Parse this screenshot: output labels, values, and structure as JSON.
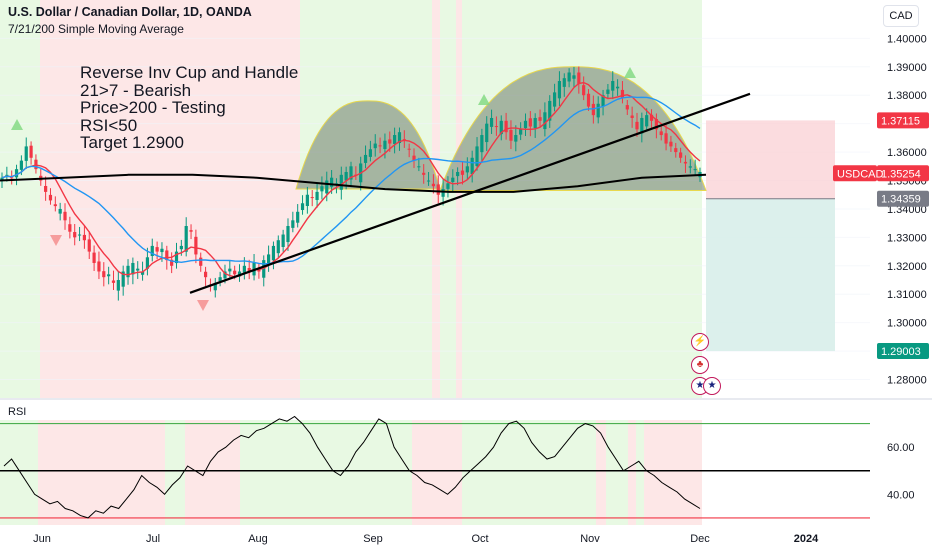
{
  "header": {
    "title": "U.S. Dollar / Canadian Dollar, 1D, OANDA",
    "indicator": "7/21/200 Simple Moving Average",
    "currency_button": "CAD"
  },
  "note_lines": [
    "Reverse Inv Cup and Handle",
    "21>7 - Bearish",
    "Price>200 - Testing",
    "RSI<50",
    "Target 1.2900"
  ],
  "rsi_label": "RSI",
  "price_labels": {
    "stop": "1.37115",
    "symbol": "USDCAD",
    "last": "1.35254",
    "entry": "1.34359",
    "target": "1.29003"
  },
  "colors": {
    "up": "#089981",
    "down": "#f23645",
    "sma7": "#f23645",
    "sma21": "#2196f3",
    "sma200": "#000000",
    "bull_zone": "#e8f9e3",
    "bear_zone": "#fde7e7",
    "stop_zone": "#f9d0d4",
    "target_zone": "#d6ede9"
  },
  "icons": [
    "lightning-icon",
    "canada-flag-icon",
    "us-flag-icon"
  ],
  "chart_data": {
    "type": "candlestick",
    "x_tick_labels": [
      "Jun",
      "Jul",
      "Aug",
      "Sep",
      "Oct",
      "Nov",
      "Dec",
      "2024"
    ],
    "y_ticks": [
      "1.40000",
      "1.39000",
      "1.38000",
      "1.37000",
      "1.36000",
      "1.35000",
      "1.34000",
      "1.33000",
      "1.32000",
      "1.31000",
      "1.30000",
      "1.29000",
      "1.28000"
    ],
    "ylim": [
      1.2735,
      1.4135
    ],
    "series_close_approx": [
      1.351,
      1.352,
      1.351,
      1.354,
      1.357,
      1.362,
      1.358,
      1.354,
      1.35,
      1.346,
      1.343,
      1.341,
      1.34,
      1.336,
      1.332,
      1.33,
      1.331,
      1.329,
      1.325,
      1.321,
      1.318,
      1.316,
      1.317,
      1.314,
      1.315,
      1.318,
      1.32,
      1.321,
      1.319,
      1.318,
      1.323,
      1.327,
      1.325,
      1.326,
      1.322,
      1.32,
      1.325,
      1.327,
      1.334,
      1.332,
      1.324,
      1.32,
      1.316,
      1.313,
      1.314,
      1.316,
      1.318,
      1.319,
      1.317,
      1.318,
      1.32,
      1.318,
      1.321,
      1.318,
      1.322,
      1.324,
      1.327,
      1.329,
      1.331,
      1.334,
      1.336,
      1.339,
      1.342,
      1.345,
      1.344,
      1.346,
      1.348,
      1.35,
      1.351,
      1.349,
      1.352,
      1.353,
      1.355,
      1.352,
      1.356,
      1.359,
      1.361,
      1.363,
      1.362,
      1.364,
      1.363,
      1.366,
      1.367,
      1.364,
      1.361,
      1.357,
      1.355,
      1.352,
      1.35,
      1.348,
      1.345,
      1.347,
      1.349,
      1.351,
      1.353,
      1.352,
      1.355,
      1.358,
      1.362,
      1.366,
      1.37,
      1.372,
      1.369,
      1.371,
      1.367,
      1.364,
      1.366,
      1.368,
      1.371,
      1.369,
      1.372,
      1.371,
      1.374,
      1.378,
      1.381,
      1.385,
      1.386,
      1.388,
      1.387,
      1.384,
      1.38,
      1.376,
      1.373,
      1.377,
      1.38,
      1.382,
      1.385,
      1.383,
      1.379,
      1.375,
      1.372,
      1.368,
      1.372,
      1.373,
      1.371,
      1.368,
      1.366,
      1.363,
      1.362,
      1.36,
      1.358,
      1.356,
      1.355,
      1.354,
      1.353
    ],
    "sma_periods": [
      7,
      21,
      200
    ],
    "sma200_approx": [
      1.35,
      1.351,
      1.352,
      1.352,
      1.351,
      1.349,
      1.347,
      1.346,
      1.346,
      1.348,
      1.351,
      1.352
    ],
    "trendline": {
      "from": [
        "2023-07-10",
        1.3105
      ],
      "to": [
        "2023-12-10",
        1.3805
      ]
    },
    "cup_top_approx": 1.39,
    "position": {
      "type": "short",
      "entry": 1.34359,
      "stop": 1.37115,
      "target": 1.29003,
      "last": 1.35254
    },
    "rsi": {
      "ticks": [
        "60.00",
        "40.00"
      ],
      "ylim": [
        27,
        80
      ],
      "levels": [
        70,
        50,
        30
      ],
      "values_approx": [
        52,
        55,
        50,
        45,
        40,
        38,
        36,
        37,
        34,
        33,
        31,
        30,
        33,
        32,
        35,
        34,
        38,
        42,
        48,
        45,
        43,
        40,
        44,
        47,
        52,
        50,
        48,
        54,
        58,
        60,
        63,
        65,
        64,
        67,
        68,
        70,
        72,
        71,
        73,
        70,
        66,
        60,
        55,
        50,
        48,
        52,
        58,
        62,
        67,
        72,
        70,
        60,
        55,
        50,
        48,
        45,
        44,
        42,
        40,
        43,
        47,
        50,
        53,
        56,
        60,
        66,
        70,
        71,
        68,
        62,
        58,
        55,
        56,
        60,
        64,
        68,
        70,
        69,
        66,
        60,
        55,
        50,
        52,
        54,
        50,
        48,
        45,
        43,
        41,
        38,
        36,
        34
      ]
    },
    "annotations": [
      "Reverse Inv Cup and Handle",
      "21>7 - Bearish",
      "Price>200 - Testing",
      "RSI<50",
      "Target 1.2900"
    ]
  }
}
